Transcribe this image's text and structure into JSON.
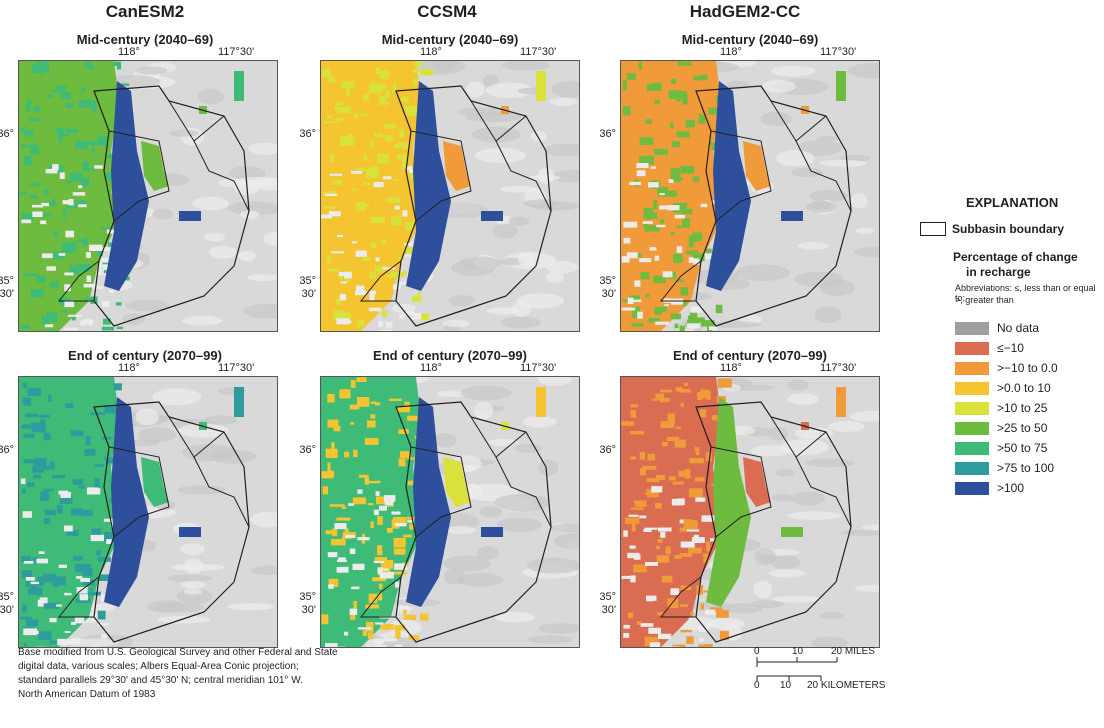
{
  "models": [
    "CanESM2",
    "CCSM4",
    "HadGEM2-CC"
  ],
  "periods": {
    "mid": "Mid-century  (2040–69)",
    "end": "End of century  (2070–99)"
  },
  "ticks": {
    "lon1": "118°",
    "lon2": "117°30'",
    "lat1": "36°",
    "lat2a": "35°",
    "lat2b": "30'"
  },
  "legend": {
    "title": "EXPLANATION",
    "boundary": "Subbasin boundary",
    "heading1": "Percentage of change",
    "heading2": "in recharge",
    "abbr1": "Abbreviations: ≤, less than or equal to;",
    "abbr2": ">, greater than",
    "classes": [
      {
        "label": "No data",
        "color": "#9e9e9e"
      },
      {
        "label": "≤−10",
        "color": "#d96c51"
      },
      {
        "label": ">−10 to 0.0",
        "color": "#f19a3a"
      },
      {
        "label": ">0.0 to 10",
        "color": "#f4c431"
      },
      {
        "label": ">10 to 25",
        "color": "#d9e23a"
      },
      {
        "label": ">25 to 50",
        "color": "#6dbb3f"
      },
      {
        "label": ">50 to 75",
        "color": "#3dbb77"
      },
      {
        "label": ">75 to 100",
        "color": "#2e9c9c"
      },
      {
        "label": ">100",
        "color": "#2d4f9c"
      }
    ]
  },
  "credit": [
    "Base modified from U.S. Geological Survey and other Federal and State",
    "digital data, various scales; Albers Equal-Area Conic projection;",
    "standard parallels 29°30' and 45°30' N; central meridian 101° W.",
    "North American Datum of 1983"
  ],
  "scale": {
    "miles": [
      "0",
      "10",
      "20 MILES"
    ],
    "km": [
      "0",
      "10",
      "20 KILOMETERS"
    ]
  },
  "maps": [
    {
      "model": "CanESM2",
      "period": "mid",
      "main": "#6dbb3f",
      "alt": "#3dbb77",
      "east": "#2d4f9c",
      "basin": "#6dbb3f"
    },
    {
      "model": "CCSM4",
      "period": "mid",
      "main": "#f4c431",
      "alt": "#d9e23a",
      "east": "#2d4f9c",
      "basin": "#f19a3a"
    },
    {
      "model": "HadGEM2-CC",
      "period": "mid",
      "main": "#f19a3a",
      "alt": "#6dbb3f",
      "east": "#2d4f9c",
      "basin": "#f19a3a"
    },
    {
      "model": "CanESM2",
      "period": "end",
      "main": "#3dbb77",
      "alt": "#2e9c9c",
      "east": "#2d4f9c",
      "basin": "#3dbb77"
    },
    {
      "model": "CCSM4",
      "period": "end",
      "main": "#3dbb77",
      "alt": "#f4c431",
      "east": "#2d4f9c",
      "basin": "#d9e23a"
    },
    {
      "model": "HadGEM2-CC",
      "period": "end",
      "main": "#d96c51",
      "alt": "#f19a3a",
      "east": "#6dbb3f",
      "basin": "#d96c51"
    }
  ]
}
